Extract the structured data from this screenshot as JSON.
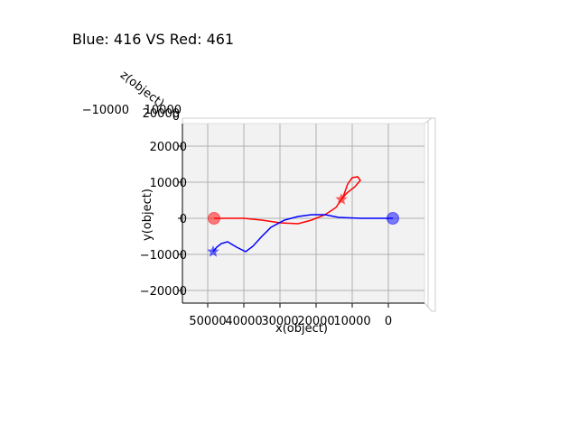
{
  "chart_data": {
    "type": "line",
    "title": "Blue: 416 VS Red: 461",
    "xlabel": "x(object)",
    "ylabel": "y(object)",
    "zlabel": "z(object)",
    "xlim": [
      57000,
      -10000
    ],
    "ylim": [
      -23500,
      26250
    ],
    "xticks": [
      50000,
      40000,
      30000,
      20000,
      10000,
      0
    ],
    "yticks": [
      {
        "value": -20000,
        "label": "−20000"
      },
      {
        "value": -10000,
        "label": "−10000"
      },
      0,
      10000,
      20000
    ],
    "zticks": [
      {
        "value": -10000,
        "label": "−10000"
      },
      0,
      10000,
      20000
    ],
    "grid": true,
    "series": [
      {
        "name": "Red",
        "color": "#ff0000",
        "x": [
          48250,
          40000,
          35000,
          30000,
          25000,
          21250,
          17500,
          14500,
          12500,
          11250,
          10000,
          8500,
          7750,
          9250,
          11500,
          13000
        ],
        "values": [
          0,
          0,
          -500,
          -1250,
          -1500,
          -500,
          1000,
          3000,
          6000,
          9500,
          11250,
          11500,
          10500,
          8750,
          7000,
          5250
        ]
      },
      {
        "name": "Blue",
        "color": "#0000ff",
        "x": [
          -1250,
          7500,
          13750,
          17500,
          21250,
          25000,
          28750,
          32500,
          35000,
          37500,
          39500,
          42000,
          44500,
          46250,
          47500,
          48500
        ],
        "values": [
          0,
          0,
          250,
          1000,
          1000,
          500,
          -500,
          -2500,
          -5000,
          -7750,
          -9250,
          -8000,
          -6500,
          -7000,
          -8000,
          -9250
        ]
      }
    ]
  }
}
